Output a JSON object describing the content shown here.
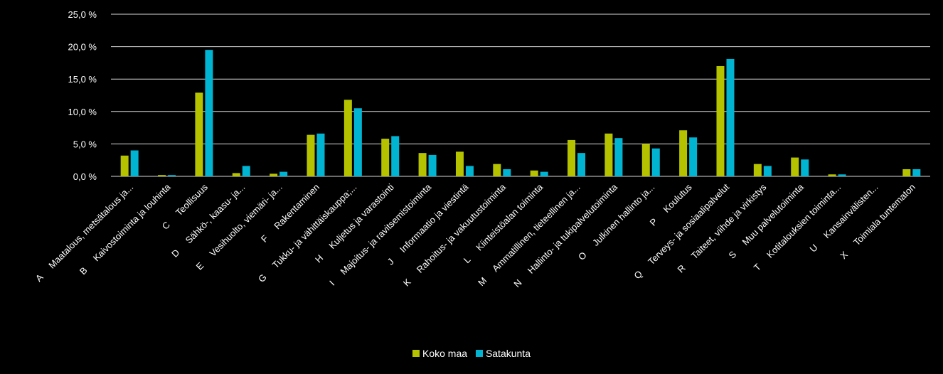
{
  "chart_data": {
    "type": "bar",
    "categories": [
      "A     Maatalous, metsätalous ja...",
      "B     Kaivostoiminta ja louhinta",
      "C     Teollisuus",
      "D     Sähkö-, kaasu- ja...",
      "E     Vesihuolto, viemäri- ja...",
      "F     Rakentaminen",
      "G     Tukku- ja vähittäiskauppa;...",
      "H     Kuljetus ja varastointi",
      "I     Majoitus- ja ravitsemistoiminta",
      "J     Informaatio ja viestintä",
      "K     Rahoitus- ja vakuutustoiminta",
      "L     Kiinteistöalan toiminta",
      "M     Ammatillinen, tieteellinen ja...",
      "N     Hallinto- ja tukipalvelutoiminta",
      "O     Julkinen hallinto ja...",
      "P     Koulutus",
      "Q     Terveys- ja sosiaalipalvelut",
      "R     Taiteet, viihde ja virkistys",
      "S     Muu palvelutoiminta",
      "T     Kotitalouksien toiminta...",
      "U     Kansainvälisten...",
      "X     Toimiala tuntematon"
    ],
    "series": [
      {
        "name": "Koko maa",
        "color": "#b5c200",
        "values": [
          3.2,
          0.2,
          12.9,
          0.5,
          0.4,
          6.4,
          11.8,
          5.8,
          3.6,
          3.8,
          1.9,
          0.9,
          5.6,
          6.6,
          5.0,
          7.1,
          17.0,
          1.9,
          2.9,
          0.3,
          0.0,
          1.1
        ]
      },
      {
        "name": "Satakunta",
        "color": "#00b4d2",
        "values": [
          4.0,
          0.2,
          19.5,
          1.6,
          0.7,
          6.6,
          10.5,
          6.2,
          3.3,
          1.6,
          1.1,
          0.7,
          3.6,
          5.9,
          4.3,
          6.0,
          18.1,
          1.6,
          2.6,
          0.3,
          0.0,
          1.1
        ]
      }
    ],
    "yticks": [
      "0,0 %",
      "5,0 %",
      "10,0 %",
      "15,0 %",
      "20,0 %",
      "25,0 %"
    ],
    "ylim": [
      0,
      25
    ],
    "grid": true,
    "legend_position": "bottom"
  }
}
